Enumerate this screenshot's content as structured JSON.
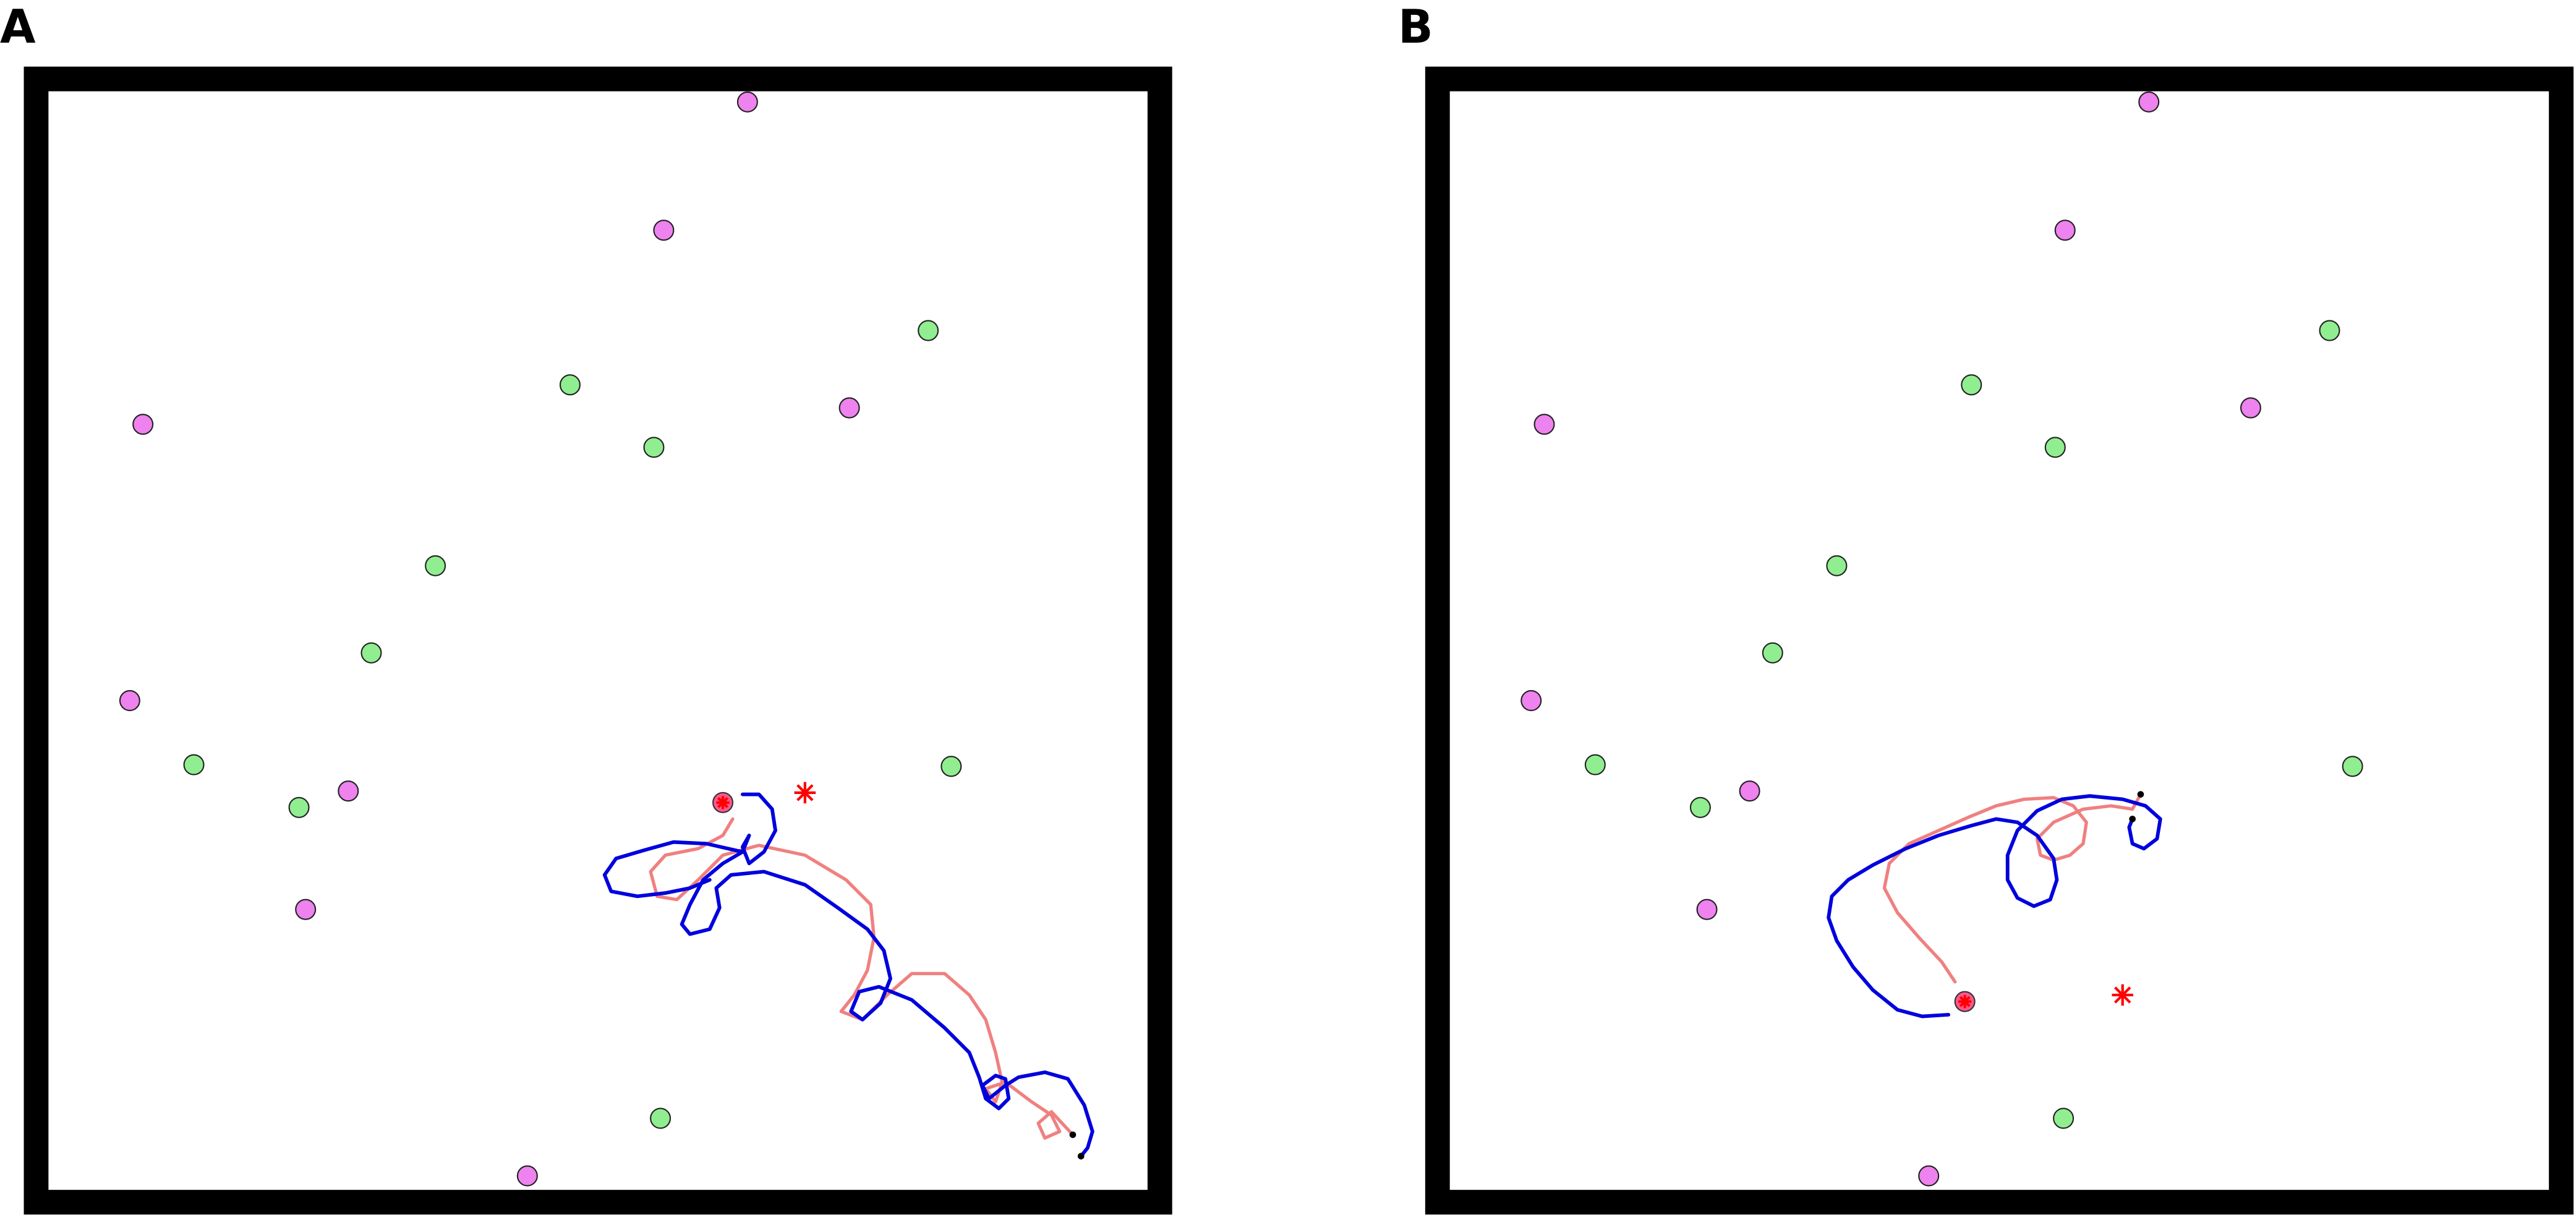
{
  "panels": [
    {
      "label": "A",
      "landmarks": {
        "magenta": [
          [
            455,
            62
          ],
          [
            404,
            140
          ],
          [
            517,
            248
          ],
          [
            87,
            258
          ],
          [
            79,
            426
          ],
          [
            212,
            481
          ],
          [
            186,
            553
          ],
          [
            321,
            715
          ]
        ],
        "green": [
          [
            565,
            201
          ],
          [
            347,
            234
          ],
          [
            398,
            272
          ],
          [
            265,
            344
          ],
          [
            226,
            397
          ],
          [
            118,
            465
          ],
          [
            579,
            466
          ],
          [
            182,
            491
          ],
          [
            402,
            680
          ]
        ]
      },
      "target_circle": [
        440,
        488
      ],
      "red_star": [
        490,
        482
      ],
      "end_points": [
        [
          653,
          690
        ],
        [
          658,
          703
        ]
      ],
      "paths": {
        "pink": [
          [
            446,
            498
          ],
          [
            440,
            508
          ],
          [
            425,
            516
          ],
          [
            405,
            520
          ],
          [
            396,
            530
          ],
          [
            400,
            545
          ],
          [
            412,
            547
          ],
          [
            425,
            535
          ],
          [
            440,
            520
          ],
          [
            462,
            514
          ],
          [
            490,
            520
          ],
          [
            515,
            535
          ],
          [
            530,
            550
          ],
          [
            532,
            570
          ],
          [
            528,
            590
          ],
          [
            520,
            605
          ],
          [
            512,
            615
          ],
          [
            525,
            620
          ],
          [
            540,
            605
          ],
          [
            555,
            592
          ],
          [
            575,
            592
          ],
          [
            590,
            605
          ],
          [
            600,
            620
          ],
          [
            606,
            640
          ],
          [
            610,
            658
          ],
          [
            606,
            670
          ],
          [
            600,
            662
          ],
          [
            612,
            658
          ],
          [
            628,
            670
          ],
          [
            640,
            678
          ],
          [
            645,
            688
          ],
          [
            636,
            692
          ],
          [
            632,
            683
          ],
          [
            640,
            676
          ],
          [
            653,
            690
          ]
        ],
        "blue": [
          [
            452,
            483
          ],
          [
            462,
            483
          ],
          [
            470,
            492
          ],
          [
            472,
            505
          ],
          [
            465,
            518
          ],
          [
            456,
            525
          ],
          [
            452,
            515
          ],
          [
            456,
            508
          ],
          [
            452,
            518
          ],
          [
            440,
            525
          ],
          [
            428,
            535
          ],
          [
            420,
            550
          ],
          [
            415,
            562
          ],
          [
            420,
            568
          ],
          [
            432,
            565
          ],
          [
            438,
            552
          ],
          [
            436,
            540
          ],
          [
            445,
            532
          ],
          [
            465,
            530
          ],
          [
            490,
            538
          ],
          [
            510,
            552
          ],
          [
            528,
            565
          ],
          [
            538,
            578
          ],
          [
            542,
            595
          ],
          [
            536,
            610
          ],
          [
            525,
            620
          ],
          [
            518,
            615
          ],
          [
            523,
            603
          ],
          [
            535,
            600
          ],
          [
            555,
            608
          ],
          [
            575,
            625
          ],
          [
            590,
            640
          ],
          [
            596,
            655
          ],
          [
            600,
            668
          ],
          [
            608,
            674
          ],
          [
            614,
            668
          ],
          [
            612,
            656
          ],
          [
            606,
            654
          ],
          [
            598,
            660
          ],
          [
            602,
            668
          ],
          [
            612,
            660
          ],
          [
            620,
            655
          ],
          [
            636,
            652
          ],
          [
            650,
            656
          ],
          [
            660,
            672
          ],
          [
            665,
            688
          ],
          [
            662,
            698
          ],
          [
            658,
            703
          ]
        ],
        "blue_extra": [
          [
            452,
            518
          ],
          [
            430,
            513
          ],
          [
            410,
            512
          ],
          [
            392,
            517
          ],
          [
            375,
            522
          ],
          [
            368,
            532
          ],
          [
            372,
            542
          ],
          [
            388,
            545
          ],
          [
            405,
            543
          ],
          [
            420,
            540
          ],
          [
            432,
            535
          ]
        ]
      }
    },
    {
      "label": "B",
      "landmarks": {
        "magenta": [
          [
            1308,
            62
          ],
          [
            1257,
            140
          ],
          [
            1370,
            248
          ],
          [
            940,
            258
          ],
          [
            932,
            426
          ],
          [
            1065,
            481
          ],
          [
            1039,
            553
          ],
          [
            1174,
            715
          ]
        ],
        "green": [
          [
            1418,
            201
          ],
          [
            1200,
            234
          ],
          [
            1251,
            272
          ],
          [
            1118,
            344
          ],
          [
            1079,
            397
          ],
          [
            971,
            465
          ],
          [
            1432,
            466
          ],
          [
            1035,
            491
          ],
          [
            1256,
            680
          ]
        ]
      },
      "target_circle": [
        1196,
        609
      ],
      "red_star": [
        1292,
        605
      ],
      "end_points": [
        [
          1303,
          483
        ],
        [
          1298,
          498
        ]
      ],
      "paths": {
        "pink": [
          [
            1190,
            597
          ],
          [
            1182,
            585
          ],
          [
            1168,
            570
          ],
          [
            1155,
            555
          ],
          [
            1147,
            540
          ],
          [
            1150,
            525
          ],
          [
            1162,
            513
          ],
          [
            1180,
            505
          ],
          [
            1198,
            497
          ],
          [
            1215,
            490
          ],
          [
            1232,
            486
          ],
          [
            1250,
            485
          ],
          [
            1262,
            490
          ],
          [
            1270,
            500
          ],
          [
            1268,
            513
          ],
          [
            1260,
            520
          ],
          [
            1250,
            523
          ],
          [
            1242,
            520
          ],
          [
            1240,
            510
          ],
          [
            1250,
            500
          ],
          [
            1268,
            492
          ],
          [
            1285,
            490
          ],
          [
            1298,
            492
          ],
          [
            1303,
            483
          ]
        ],
        "blue": [
          [
            1186,
            617
          ],
          [
            1170,
            618
          ],
          [
            1155,
            614
          ],
          [
            1140,
            602
          ],
          [
            1128,
            588
          ],
          [
            1118,
            572
          ],
          [
            1113,
            558
          ],
          [
            1115,
            545
          ],
          [
            1125,
            535
          ],
          [
            1140,
            526
          ],
          [
            1160,
            516
          ],
          [
            1180,
            508
          ],
          [
            1200,
            502
          ],
          [
            1215,
            498
          ],
          [
            1228,
            500
          ],
          [
            1240,
            508
          ],
          [
            1250,
            522
          ],
          [
            1252,
            535
          ],
          [
            1248,
            547
          ],
          [
            1238,
            551
          ],
          [
            1228,
            546
          ],
          [
            1222,
            535
          ],
          [
            1222,
            520
          ],
          [
            1228,
            505
          ],
          [
            1240,
            493
          ],
          [
            1255,
            486
          ],
          [
            1272,
            484
          ],
          [
            1292,
            486
          ],
          [
            1306,
            490
          ],
          [
            1315,
            498
          ],
          [
            1313,
            510
          ],
          [
            1305,
            516
          ],
          [
            1298,
            513
          ],
          [
            1296,
            503
          ],
          [
            1298,
            498
          ]
        ]
      }
    }
  ],
  "colors": {
    "frame": "#000000",
    "magenta": "#ee82ee",
    "green": "#90ee90",
    "pink_path": "#f08080",
    "blue_path": "#0000dd",
    "target": "#ff3a7a",
    "star": "#ff0000"
  }
}
